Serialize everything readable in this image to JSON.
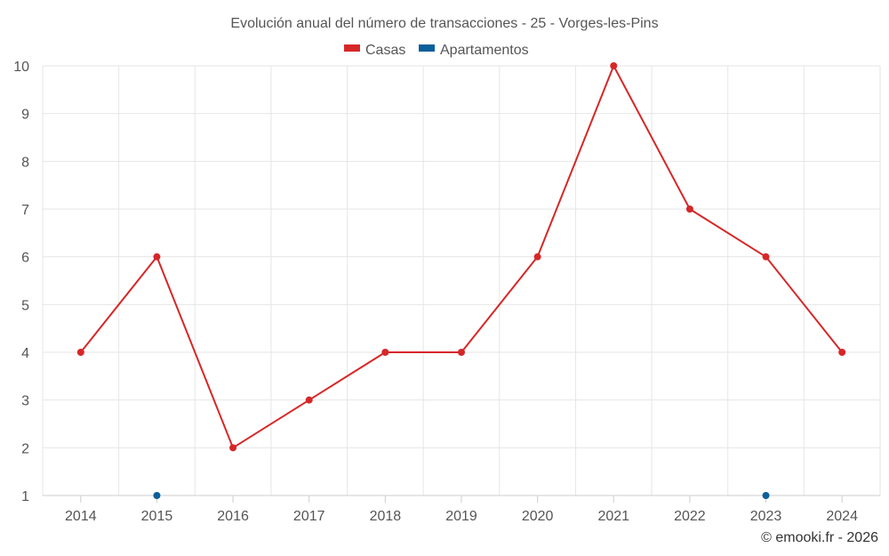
{
  "chart_data": {
    "type": "line",
    "title": "Evolución anual del número de transacciones - 25 - Vorges-les-Pins",
    "categories": [
      "2014",
      "2015",
      "2016",
      "2017",
      "2018",
      "2019",
      "2020",
      "2021",
      "2022",
      "2023",
      "2024"
    ],
    "series": [
      {
        "name": "Casas",
        "color": "#d62728",
        "values": [
          4,
          6,
          2,
          3,
          4,
          4,
          6,
          10,
          7,
          6,
          4
        ]
      },
      {
        "name": "Apartamentos",
        "color": "#0b5f9a",
        "values": [
          null,
          1,
          null,
          null,
          null,
          null,
          null,
          null,
          null,
          1,
          null
        ]
      }
    ],
    "yticks": [
      1,
      2,
      3,
      4,
      5,
      6,
      7,
      8,
      9,
      10
    ],
    "ylim": [
      1,
      10
    ],
    "grid": true,
    "legend_position": "top-center"
  },
  "credit": "© emooki.fr - 2026"
}
